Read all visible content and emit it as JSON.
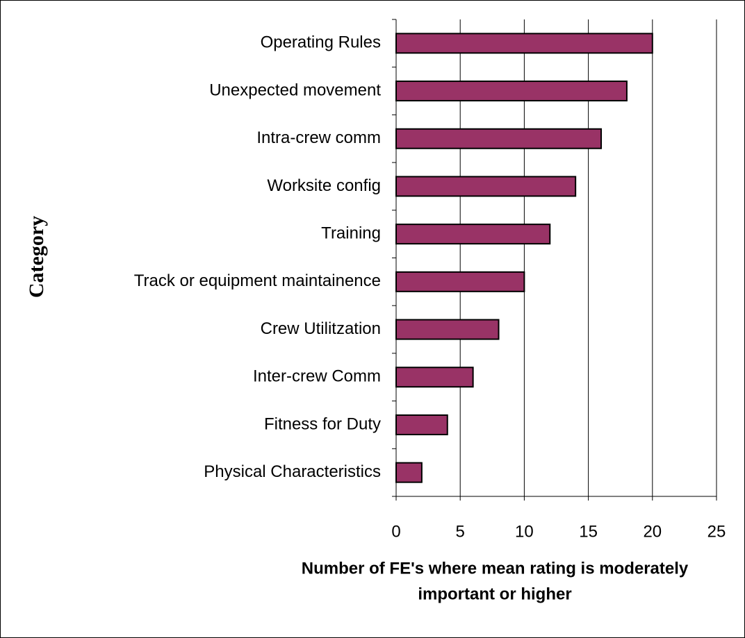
{
  "chart_data": {
    "type": "barh",
    "categories": [
      "Operating Rules",
      "Unexpected movement",
      "Intra-crew comm",
      "Worksite config",
      "Training",
      "Track or equipment maintainence",
      "Crew Utilitzation",
      "Inter-crew Comm",
      "Fitness for Duty",
      "Physical Characteristics"
    ],
    "values": [
      20,
      18,
      16,
      14,
      12,
      10,
      8,
      6,
      4,
      2
    ],
    "color": "#993366",
    "xlim": [
      0,
      25
    ],
    "xticks": [
      0,
      5,
      10,
      15,
      20,
      25
    ],
    "grid": true,
    "xlabel": [
      "Number of FE's where mean rating is moderately",
      "important or higher"
    ],
    "ylabel": "Category"
  }
}
